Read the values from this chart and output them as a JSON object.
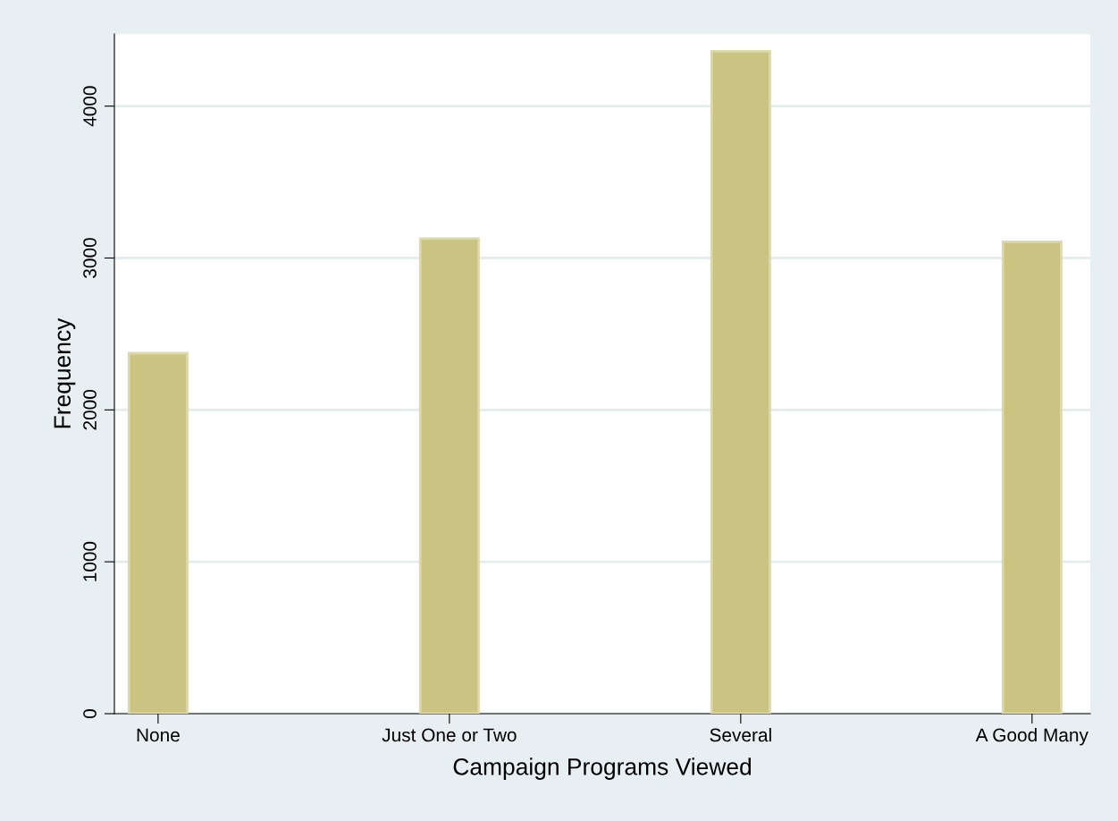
{
  "chart_data": {
    "type": "bar",
    "xlabel": "Campaign Programs Viewed",
    "ylabel": "Frequency",
    "categories": [
      "None",
      "Just One or Two",
      "Several",
      "A Good Many"
    ],
    "values": [
      2373,
      3127,
      4361,
      3107
    ],
    "color": "#cbc381",
    "ylim": [
      0,
      4475
    ],
    "yticks": [
      0,
      1000,
      2000,
      3000,
      4000
    ],
    "grid": "y"
  }
}
